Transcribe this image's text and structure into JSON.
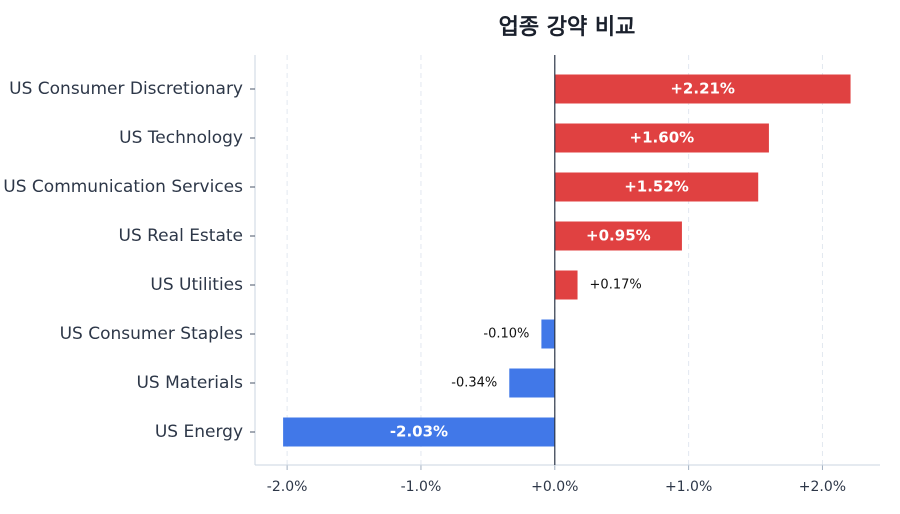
{
  "chart_data": {
    "type": "barh",
    "title": "업종 강약 비교",
    "categories": [
      "US Consumer Discretionary",
      "US Technology",
      "US Communication Services",
      "US Real Estate",
      "US Utilities",
      "US Consumer Staples",
      "US Materials",
      "US Energy"
    ],
    "values": [
      2.21,
      1.6,
      1.52,
      0.95,
      0.17,
      -0.1,
      -0.34,
      -2.03
    ],
    "value_labels": [
      "+2.21%",
      "+1.60%",
      "+1.52%",
      "+0.95%",
      "+0.17%",
      "-0.10%",
      "-0.34%",
      "-2.03%"
    ],
    "positive_color": "#e04141",
    "negative_color": "#4178e8",
    "xlim": [
      -2.24,
      2.43
    ],
    "xticks": [
      {
        "value": -2,
        "label": "-2.0%"
      },
      {
        "value": -1,
        "label": "-1.0%"
      },
      {
        "value": 0,
        "label": "+0.0%"
      },
      {
        "value": 1,
        "label": "+1.0%"
      },
      {
        "value": 2,
        "label": "+2.0%"
      }
    ],
    "grid": true
  }
}
